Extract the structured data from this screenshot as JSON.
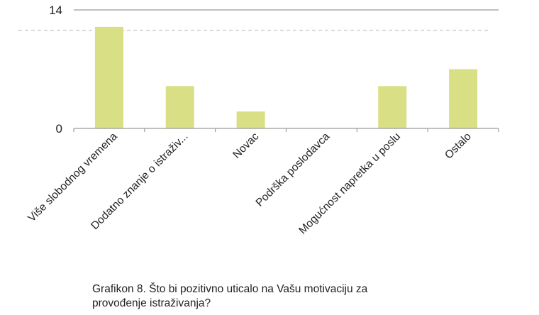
{
  "chart_data": {
    "type": "bar",
    "categories": [
      "Više slobodnog vremena",
      "Dodatno znanje o istraživ...",
      "Novac",
      "Podrška poslodavca",
      "Mogućnost napretka u poslu",
      "Ostalo"
    ],
    "values": [
      12,
      5,
      2,
      0,
      5,
      7
    ],
    "ylim": [
      0,
      14
    ],
    "y_ticks": [
      "0",
      "14"
    ],
    "reference_line": 11.6,
    "bar_color": "#d9df85",
    "axis_color": "#9a9a9a",
    "reference_line_color": "#c4c4c4",
    "grid": false,
    "legend": "none"
  },
  "caption": {
    "line1": "Grafikon 8. Što bi pozitivno uticalo na Vašu motivaciju za",
    "line2": "provođenje istraživanja?"
  }
}
